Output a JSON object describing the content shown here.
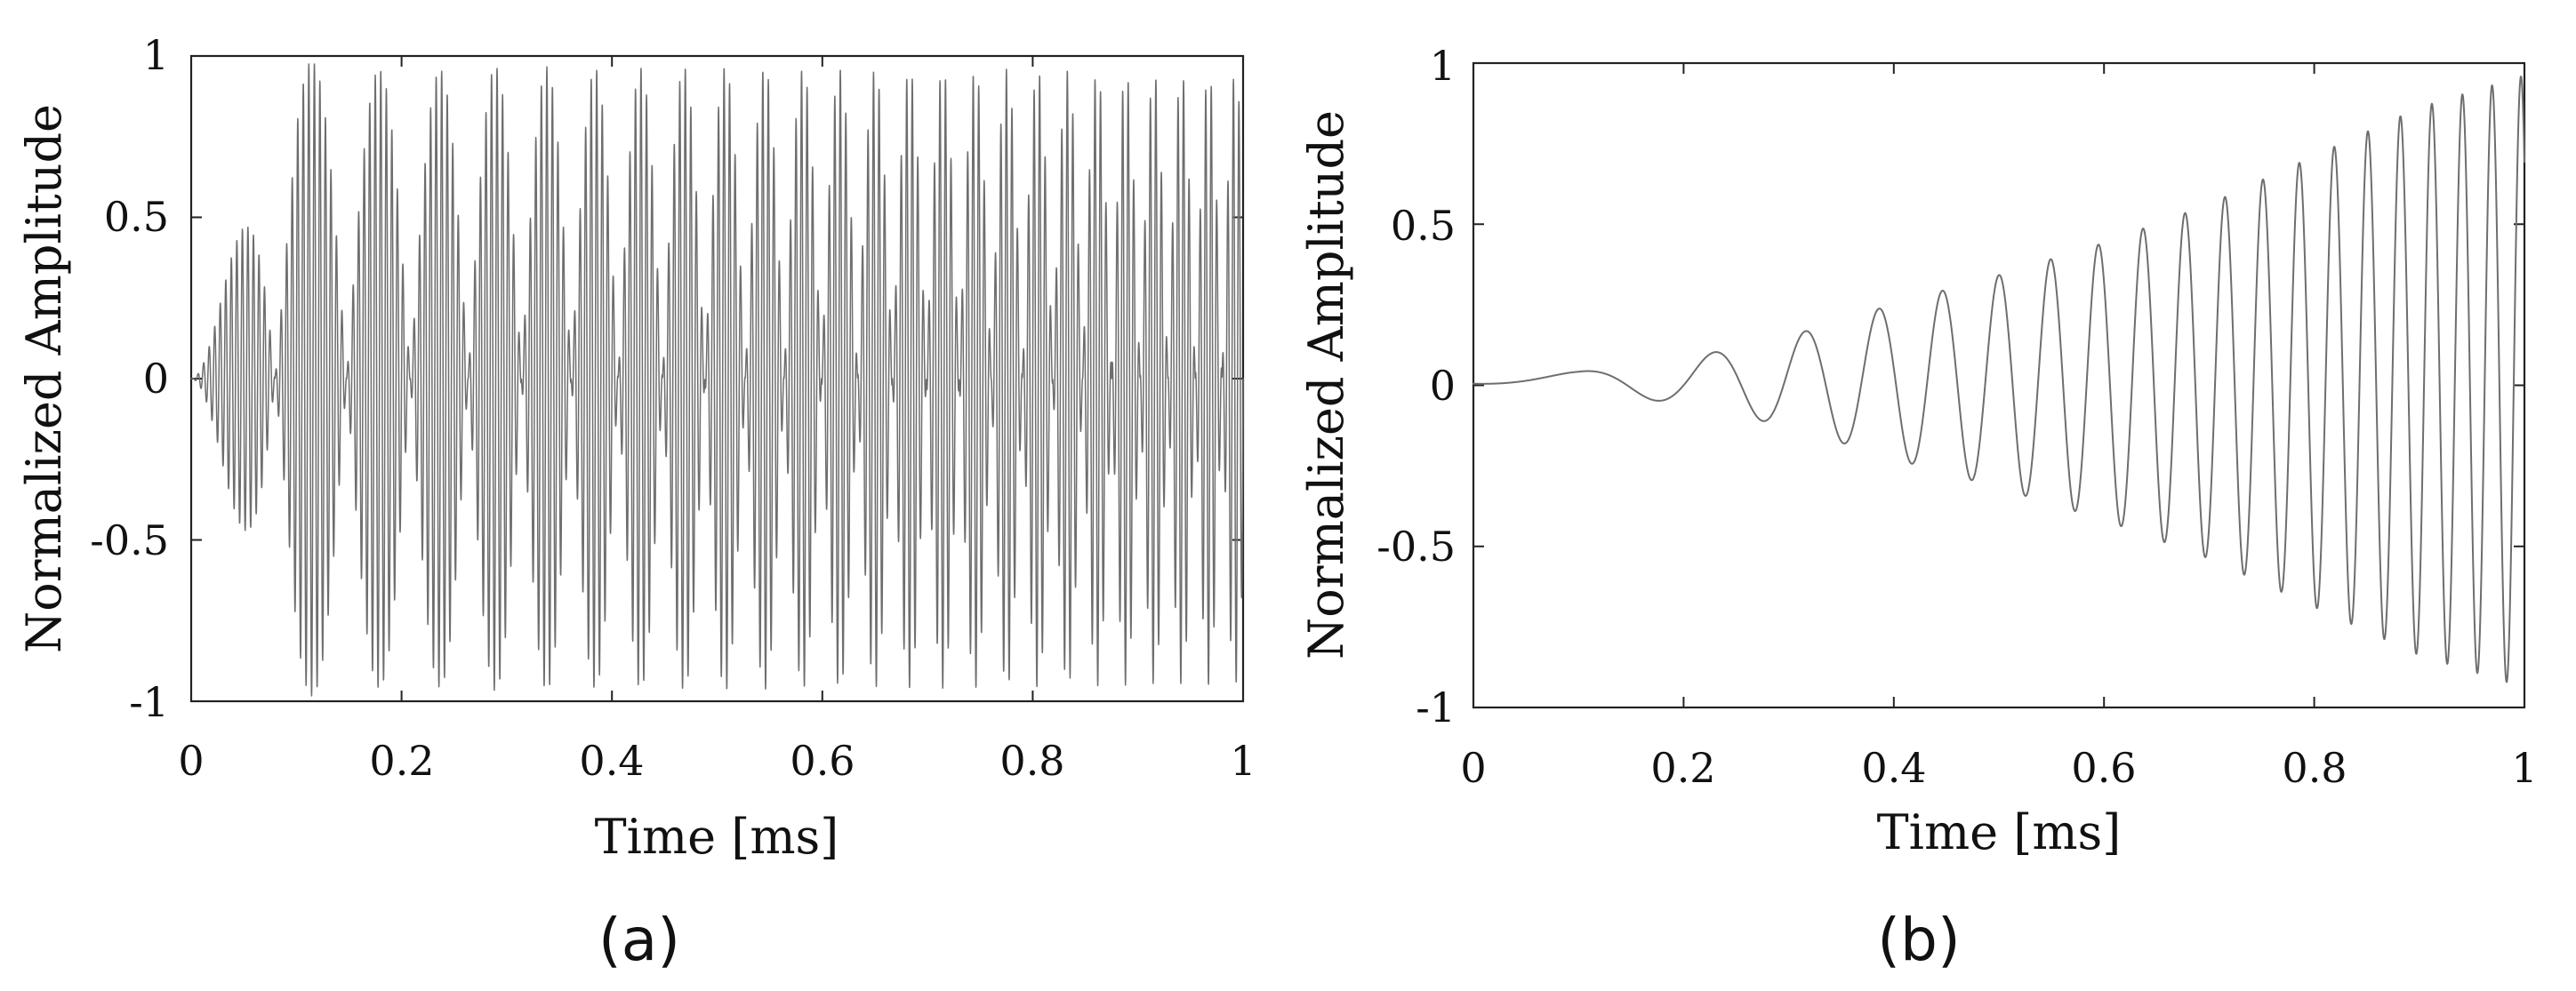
{
  "chart_data": [
    {
      "type": "line",
      "panel_label": "(a)",
      "xlabel": "Time [ms]",
      "ylabel": "Normalized Amplitude",
      "xlim": [
        0,
        1
      ],
      "ylim": [
        -1,
        1
      ],
      "xticks": [
        0,
        0.2,
        0.4,
        0.6,
        0.8,
        1
      ],
      "xtick_labels": [
        "0",
        "0.2",
        "0.4",
        "0.6",
        "0.8",
        "1"
      ],
      "yticks": [
        1,
        0.5,
        0,
        -0.5,
        -1
      ],
      "ytick_labels": [
        "1",
        "0.5",
        "0",
        "-0.5",
        "-1"
      ],
      "grid": false,
      "line_color": "#6e6e6e",
      "series": [
        {
          "description": "Amplitude-modulated chirp; envelope peaks near 0.09, 0.19, 0.28, 0.36, 0.44, 0.51 ms and repeats with shrinking period",
          "x": [
            0,
            0.1,
            0.2,
            0.3,
            0.4,
            0.5,
            0.6,
            0.7,
            0.8,
            0.9,
            1.0
          ],
          "envelope": [
            0.0,
            0.99,
            0.95,
            0.97,
            0.96,
            0.97,
            0.96,
            0.96,
            0.96,
            0.95,
            0.95
          ]
        }
      ]
    },
    {
      "type": "line",
      "panel_label": "(b)",
      "xlabel": "Time [ms]",
      "ylabel": "Normalized Amplitude",
      "xlim": [
        0,
        1
      ],
      "ylim": [
        -1,
        1
      ],
      "xticks": [
        0,
        0.2,
        0.4,
        0.6,
        0.8,
        1
      ],
      "xtick_labels": [
        "0",
        "0.2",
        "0.4",
        "0.6",
        "0.8",
        "1"
      ],
      "yticks": [
        1,
        0.5,
        0,
        -0.5,
        -1
      ],
      "ytick_labels": [
        "1",
        "0.5",
        "0",
        "-0.5",
        "-1"
      ],
      "grid": false,
      "line_color": "#6e6e6e",
      "series": [
        {
          "description": "Linear chirp with linearly growing amplitude",
          "x": [
            0,
            0.1,
            0.2,
            0.3,
            0.4,
            0.5,
            0.6,
            0.7,
            0.8,
            0.9,
            1.0
          ],
          "envelope": [
            0.01,
            0.03,
            0.07,
            0.14,
            0.24,
            0.33,
            0.43,
            0.55,
            0.7,
            0.85,
            0.95
          ]
        }
      ]
    }
  ]
}
